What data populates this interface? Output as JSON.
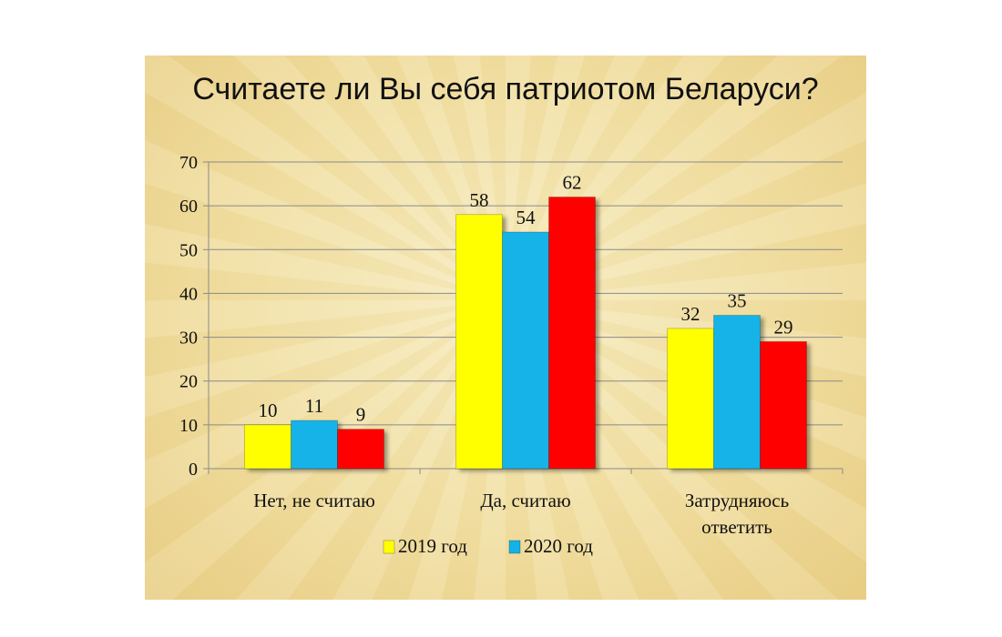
{
  "chart_data": {
    "type": "bar",
    "title": "Считаете ли Вы себя патриотом Беларуси?",
    "categories": [
      [
        "Нет, не считаю"
      ],
      [
        "Да, считаю"
      ],
      [
        "Затрудняюсь",
        "ответить"
      ]
    ],
    "series": [
      {
        "name": "2019 год",
        "values": [
          10,
          58,
          32
        ],
        "color": "#ffff00"
      },
      {
        "name": "2020 год",
        "values": [
          11,
          54,
          35
        ],
        "color": "#12b3e8"
      },
      {
        "name": "",
        "values": [
          9,
          62,
          29
        ],
        "color": "#ff0000"
      }
    ],
    "ylim": [
      0,
      70
    ],
    "yticks": [
      0,
      10,
      20,
      30,
      40,
      50,
      60,
      70
    ],
    "grid": true,
    "legend_position": "bottom",
    "xlabel": "",
    "ylabel": ""
  }
}
